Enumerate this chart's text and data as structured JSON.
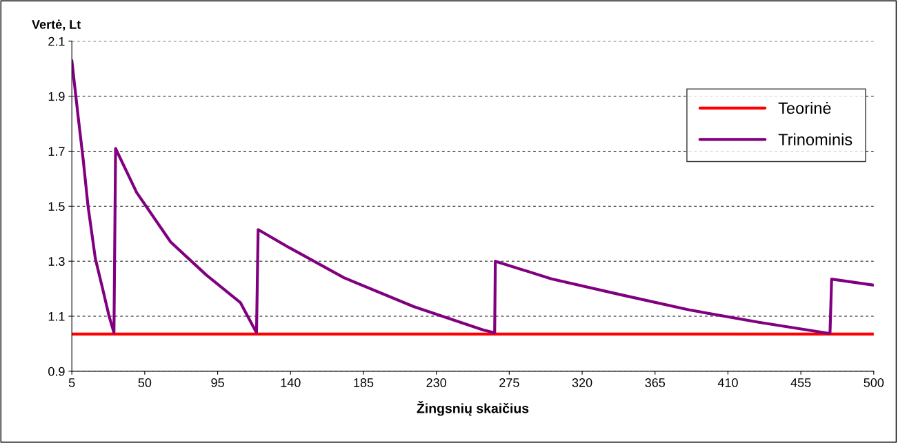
{
  "chart_data": {
    "type": "line",
    "ylabel": "Vertė, Lt",
    "xlabel": "Žingsnių skaičius",
    "xlim": [
      5,
      500
    ],
    "xticks": [
      5,
      50,
      95,
      140,
      185,
      230,
      275,
      320,
      365,
      410,
      455,
      500
    ],
    "ylim": [
      0.9,
      2.1
    ],
    "yticks": [
      0.9,
      1.1,
      1.3,
      1.5,
      1.7,
      1.9,
      2.1
    ],
    "grid": "y",
    "legend": "top right",
    "marker": "none",
    "line_style": "solid",
    "series": [
      {
        "name": "Teorinė",
        "color": "#ff0000",
        "x": [
          5,
          500
        ],
        "values": [
          1.035,
          1.035
        ]
      },
      {
        "name": "Trinominis",
        "color": "#800080",
        "x": [
          5,
          9,
          12,
          15,
          19.5,
          24,
          28,
          31,
          32,
          45,
          66,
          88,
          109,
          119,
          120,
          139,
          173,
          216,
          259,
          266,
          266.4,
          301,
          344,
          386,
          429,
          472,
          473,
          474,
          500
        ],
        "values": [
          2.03,
          1.82,
          1.67,
          1.5,
          1.31,
          1.2,
          1.1,
          1.04,
          1.71,
          1.55,
          1.37,
          1.25,
          1.15,
          1.04,
          1.415,
          1.35,
          1.24,
          1.135,
          1.05,
          1.04,
          1.3,
          1.236,
          1.178,
          1.123,
          1.078,
          1.038,
          1.04,
          1.235,
          1.213
        ]
      }
    ]
  }
}
